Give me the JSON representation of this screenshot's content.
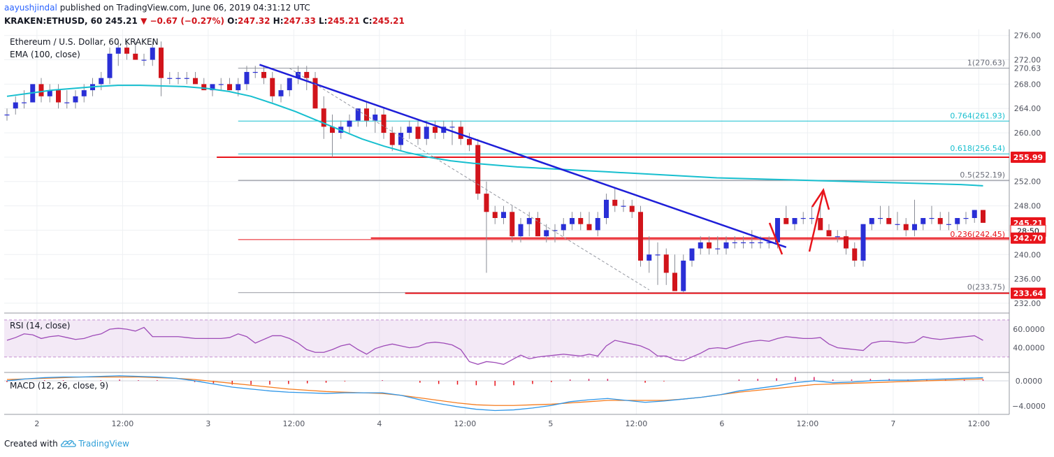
{
  "header": {
    "author": "aayushjindal",
    "published": "published on TradingView.com, June 06, 2019 04:31:12 UTC",
    "symbol": "KRAKEN:ETHUSD, 60",
    "price": "245.21",
    "change": "−0.67 (−0.27%)",
    "o_label": "O:",
    "o": "247.32",
    "h_label": "H:",
    "h": "247.33",
    "l_label": "L:",
    "l": "245.21",
    "c_label": "C:",
    "c": "245.21"
  },
  "footer": {
    "created_with": "Created with",
    "brand": "TradingView"
  },
  "colors": {
    "up": "#2a2fd6",
    "down": "#d1141b",
    "ema": "#17bfcf",
    "trend": "#1e1ed8",
    "sr": "#e8141b",
    "rsi": "#9e4bb8",
    "macd": "#2e96e8",
    "signal": "#f57c1f"
  },
  "chart_data": [
    {
      "type": "candlestick",
      "title": "Ethereum / U.S. Dollar, 60, KRAKEN",
      "indicator": "EMA (100, close)",
      "ylim": [
        230.5,
        277
      ],
      "y_ticks": [
        "276.00",
        "272.00",
        "268.00",
        "264.00",
        "260.00",
        "256.00",
        "252.00",
        "248.00",
        "244.00",
        "240.00",
        "236.00",
        "232.00"
      ],
      "x_ticks": [
        "2",
        "12:00",
        "3",
        "12:00",
        "4",
        "12:00",
        "5",
        "12:00",
        "6",
        "12:00",
        "7",
        "12:00"
      ],
      "x_tick_bars": [
        3.5,
        13.5,
        23.5,
        33.5,
        43.5,
        53.5,
        63.5,
        73.5,
        83.5,
        93.5,
        103.5,
        113.5
      ],
      "candles": [
        [
          263,
          264,
          262,
          263
        ],
        [
          264,
          266,
          263,
          265
        ],
        [
          265,
          267,
          264,
          265
        ],
        [
          265,
          268,
          265,
          268
        ],
        [
          268,
          269,
          265,
          266
        ],
        [
          266,
          268,
          265,
          267
        ],
        [
          267,
          268,
          264,
          265
        ],
        [
          265,
          267,
          264,
          265
        ],
        [
          265,
          267,
          264,
          266
        ],
        [
          266,
          268,
          265,
          267
        ],
        [
          267,
          269,
          266,
          268
        ],
        [
          268,
          270,
          267,
          269
        ],
        [
          269,
          274,
          268,
          273
        ],
        [
          273,
          275,
          271,
          274
        ],
        [
          274,
          275,
          272,
          273
        ],
        [
          273,
          275,
          272,
          272
        ],
        [
          272,
          273,
          271,
          272
        ],
        [
          272,
          275,
          271,
          274
        ],
        [
          274,
          275,
          266,
          269
        ],
        [
          269,
          270,
          268,
          269
        ],
        [
          269,
          270,
          268,
          269
        ],
        [
          269,
          270,
          268,
          269
        ],
        [
          269,
          270,
          268,
          268
        ],
        [
          268,
          269,
          267,
          267
        ],
        [
          267,
          268,
          266,
          268
        ],
        [
          268,
          269,
          267,
          268
        ],
        [
          268,
          269,
          267,
          267
        ],
        [
          267,
          269,
          266,
          268
        ],
        [
          268,
          271,
          267,
          270
        ],
        [
          270,
          271,
          269,
          270
        ],
        [
          270,
          271,
          268,
          269
        ],
        [
          269,
          270,
          265,
          266
        ],
        [
          266,
          268,
          265,
          267
        ],
        [
          267,
          269,
          266,
          269
        ],
        [
          269,
          271,
          268,
          270
        ],
        [
          270,
          271,
          267,
          269
        ],
        [
          269,
          270,
          264,
          264
        ],
        [
          264,
          266,
          259,
          261
        ],
        [
          261,
          263,
          256,
          260
        ],
        [
          260,
          262,
          259,
          261
        ],
        [
          261,
          263,
          260,
          262
        ],
        [
          262,
          264,
          261,
          264
        ],
        [
          264,
          265,
          261,
          262
        ],
        [
          262,
          264,
          260,
          263
        ],
        [
          263,
          264,
          259,
          260
        ],
        [
          260,
          261,
          257,
          258
        ],
        [
          258,
          261,
          257,
          260
        ],
        [
          260,
          262,
          259,
          261
        ],
        [
          261,
          262,
          258,
          259
        ],
        [
          259,
          262,
          258,
          261
        ],
        [
          261,
          262,
          259,
          260
        ],
        [
          260,
          262,
          259,
          261
        ],
        [
          261,
          262,
          258,
          261
        ],
        [
          261,
          262,
          258,
          259
        ],
        [
          259,
          260,
          257,
          258
        ],
        [
          258,
          259,
          249,
          250
        ],
        [
          250,
          252,
          237,
          247
        ],
        [
          247,
          248,
          245,
          246
        ],
        [
          246,
          248,
          245,
          247
        ],
        [
          247,
          248,
          242,
          243
        ],
        [
          243,
          246,
          242,
          245
        ],
        [
          245,
          247,
          243,
          246
        ],
        [
          246,
          247,
          243,
          243
        ],
        [
          243,
          245,
          242,
          244
        ],
        [
          244,
          245,
          242,
          244
        ],
        [
          244,
          246,
          243,
          245
        ],
        [
          245,
          247,
          244,
          246
        ],
        [
          246,
          247,
          244,
          245
        ],
        [
          245,
          247,
          244,
          244
        ],
        [
          244,
          247,
          243,
          246
        ],
        [
          246,
          250,
          245,
          249
        ],
        [
          249,
          251,
          247,
          248
        ],
        [
          248,
          249,
          247,
          248
        ],
        [
          248,
          249,
          246,
          247
        ],
        [
          247,
          248,
          238,
          239
        ],
        [
          239,
          243,
          237,
          240
        ],
        [
          240,
          242,
          235,
          240
        ],
        [
          240,
          241,
          235,
          237
        ],
        [
          237,
          240,
          234,
          234
        ],
        [
          234,
          240,
          233.8,
          239
        ],
        [
          239,
          241,
          238,
          241
        ],
        [
          241,
          243,
          240,
          242
        ],
        [
          242,
          243,
          240,
          241
        ],
        [
          241,
          243,
          240,
          241
        ],
        [
          241,
          243,
          240,
          242
        ],
        [
          242,
          243,
          241,
          242
        ],
        [
          242,
          243,
          241,
          242
        ],
        [
          242,
          244,
          241,
          242
        ],
        [
          242,
          243,
          241,
          242
        ],
        [
          242,
          243,
          241,
          242
        ],
        [
          242,
          246,
          241,
          246
        ],
        [
          246,
          248,
          245,
          245
        ],
        [
          245,
          246,
          244,
          246
        ],
        [
          246,
          247,
          245,
          246
        ],
        [
          246,
          248,
          245,
          246
        ],
        [
          246,
          248,
          244,
          244
        ],
        [
          244,
          245,
          243,
          243
        ],
        [
          243,
          244,
          242,
          243
        ],
        [
          243,
          244,
          240,
          241
        ],
        [
          241,
          242,
          238,
          239
        ],
        [
          239,
          245,
          238,
          245
        ],
        [
          245,
          246,
          244,
          246
        ],
        [
          246,
          248,
          245,
          246
        ],
        [
          246,
          248,
          245,
          245
        ],
        [
          245,
          247,
          244,
          245
        ],
        [
          245,
          246,
          243,
          244
        ],
        [
          244,
          249,
          243,
          245
        ],
        [
          245,
          246,
          244,
          246
        ],
        [
          246,
          248,
          245,
          246
        ],
        [
          246,
          247,
          244,
          245
        ],
        [
          245,
          247,
          244,
          245
        ],
        [
          245,
          246,
          244,
          246
        ],
        [
          246,
          247,
          245,
          246
        ],
        [
          246,
          247.33,
          245.21,
          247.32
        ],
        [
          247.32,
          247.33,
          245.21,
          245.21
        ]
      ],
      "ema_100": [
        266,
        266.5,
        267,
        267.3,
        267.6,
        267.8,
        267.8,
        267.7,
        267.6,
        267.3,
        266.8,
        266,
        264.8,
        263.5,
        262,
        260.5,
        259,
        257.8,
        256.8,
        256,
        255.4,
        255,
        254.7,
        254.4,
        254.2,
        254,
        253.8,
        253.6,
        253.4,
        253.2,
        253,
        252.8,
        252.6,
        252.5,
        252.4,
        252.3,
        252.2,
        252.1,
        252,
        251.9,
        251.8,
        251.7,
        251.6,
        251.5,
        251.3
      ],
      "fib_levels": [
        {
          "label": "1(270.63)",
          "value": 270.63
        },
        {
          "label": "0.764(261.93)",
          "value": 261.93
        },
        {
          "label": "0.618(256.54)",
          "value": 256.54
        },
        {
          "label": "0.5(252.19)",
          "value": 252.19
        },
        {
          "label": "0.236(242.45)",
          "value": 242.45
        },
        {
          "label": "0(233.75)",
          "value": 233.75
        }
      ],
      "horizontal_lines": [
        255.99,
        242.7,
        233.64
      ],
      "trend_line": [
        [
          29.5,
          271.2
        ],
        [
          91,
          241.2
        ]
      ],
      "dashed_line": [
        [
          33,
          270.6
        ],
        [
          75,
          234.2
        ]
      ],
      "price_labels": [
        {
          "text": "270.63",
          "value": 270.63,
          "style": "plain"
        },
        {
          "text": "255.99",
          "value": 255.99,
          "style": "red"
        },
        {
          "text": "245.21",
          "value": 245.21,
          "style": "red"
        },
        {
          "text": "28:50",
          "value": 243.9,
          "style": "white"
        },
        {
          "text": "242.70",
          "value": 242.7,
          "style": "red"
        },
        {
          "text": "233.64",
          "value": 233.64,
          "style": "red"
        }
      ]
    },
    {
      "type": "line",
      "title": "RSI (14, close)",
      "ylim": [
        14,
        76
      ],
      "y_ticks": [
        "60.0000",
        "40.0000"
      ],
      "bands": [
        30,
        70
      ],
      "values": [
        48,
        51,
        55,
        54,
        50,
        52,
        53,
        51,
        49,
        50,
        53,
        55,
        60,
        61,
        60,
        58,
        62,
        52,
        52,
        52,
        52,
        51,
        50,
        50,
        50,
        50,
        51,
        55,
        52,
        45,
        49,
        53,
        53,
        50,
        45,
        38,
        35,
        35,
        38,
        42,
        44,
        38,
        33,
        39,
        42,
        44,
        42,
        40,
        41,
        45,
        46,
        45,
        43,
        38,
        25,
        22,
        25,
        24,
        22,
        27,
        32,
        28,
        30,
        31,
        32,
        33,
        32,
        31,
        33,
        31,
        42,
        48,
        46,
        44,
        42,
        38,
        31,
        31,
        27,
        26,
        30,
        34,
        39,
        40,
        39,
        42,
        45,
        47,
        48,
        47,
        50,
        52,
        51,
        50,
        50,
        51,
        44,
        40,
        39,
        38,
        37,
        45,
        47,
        47,
        46,
        45,
        46,
        52,
        50,
        49,
        50,
        51,
        52,
        53,
        48
      ]
    },
    {
      "type": "line",
      "title": "MACD (12, 26, close, 9)",
      "ylim": [
        -5.2,
        1.1
      ],
      "y_ticks": [
        "0.0000",
        "−4.0000"
      ],
      "macd": [
        0,
        0.3,
        0.5,
        0.6,
        0.6,
        0.7,
        0.8,
        0.7,
        0.6,
        0.4,
        0,
        -0.5,
        -1,
        -1.3,
        -1.6,
        -1.8,
        -1.9,
        -2,
        -1.9,
        -1.9,
        -1.9,
        -2.3,
        -3,
        -3.6,
        -4.1,
        -4.5,
        -4.7,
        -4.6,
        -4.3,
        -3.9,
        -3.3,
        -3,
        -2.8,
        -3.1,
        -3.4,
        -3.2,
        -2.9,
        -2.6,
        -2.2,
        -1.6,
        -1.2,
        -0.8,
        -0.3,
        0,
        -0.3,
        -0.2,
        0,
        0.1,
        0.1,
        0.2,
        0.3,
        0.4,
        0.5
      ],
      "signal": [
        0.2,
        0.3,
        0.4,
        0.5,
        0.6,
        0.6,
        0.6,
        0.6,
        0.5,
        0.4,
        0.2,
        -0.1,
        -0.4,
        -0.7,
        -1,
        -1.3,
        -1.5,
        -1.7,
        -1.8,
        -1.9,
        -2,
        -2.3,
        -2.7,
        -3.1,
        -3.5,
        -3.8,
        -3.9,
        -3.9,
        -3.8,
        -3.7,
        -3.5,
        -3.3,
        -3.1,
        -3.1,
        -3.1,
        -3.1,
        -2.9,
        -2.6,
        -2.2,
        -1.8,
        -1.5,
        -1.2,
        -0.9,
        -0.6,
        -0.5,
        -0.4,
        -0.3,
        -0.2,
        -0.1,
        0,
        0.1,
        0.2,
        0.3
      ]
    }
  ]
}
